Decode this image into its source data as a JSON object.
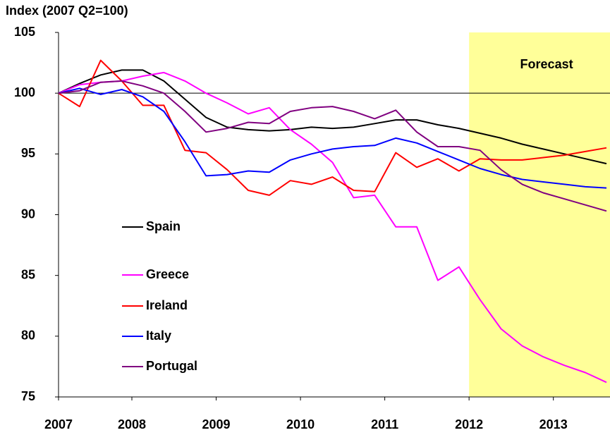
{
  "chart_data": {
    "type": "line",
    "y_axis_label": "Index (2007 Q2=100)",
    "annotation": "Forecast",
    "forecast_start": 2012,
    "forecast_color": "#ffff99",
    "reference_line": 100,
    "xlim": [
      2007.13,
      2013.63
    ],
    "xticks": [
      {
        "value": 2007.13,
        "label": "2007"
      },
      2008,
      2009,
      2010,
      2011,
      2012,
      2013
    ],
    "ylim": [
      75,
      105
    ],
    "yticks": [
      75,
      80,
      85,
      90,
      95,
      100,
      105
    ],
    "x": [
      2007.13,
      2007.38,
      2007.63,
      2007.88,
      2008.13,
      2008.38,
      2008.63,
      2008.88,
      2009.13,
      2009.38,
      2009.63,
      2009.88,
      2010.13,
      2010.38,
      2010.63,
      2010.88,
      2011.13,
      2011.38,
      2011.63,
      2011.88,
      2012.13,
      2012.38,
      2012.63,
      2012.88,
      2013.13,
      2013.38,
      2013.63
    ],
    "series": [
      {
        "name": "Spain",
        "color": "#000000",
        "values": [
          100,
          100.8,
          101.5,
          101.9,
          101.9,
          101,
          99.5,
          98,
          97.2,
          97,
          96.9,
          97,
          97.2,
          97.1,
          97.2,
          97.5,
          97.8,
          97.8,
          97.4,
          97.1,
          96.7,
          96.3,
          95.8,
          95.4,
          95,
          94.6,
          94.2
        ]
      },
      {
        "name": "Greece",
        "color": "#ff00ff",
        "values": [
          100,
          100.7,
          100.9,
          101,
          101.4,
          101.7,
          101,
          100,
          99.2,
          98.3,
          98.8,
          97,
          95.8,
          94.3,
          91.4,
          91.6,
          89,
          89,
          84.6,
          85.7,
          83,
          80.6,
          79.2,
          78.3,
          77.6,
          77,
          76.2
        ]
      },
      {
        "name": "Ireland",
        "color": "#ff0000",
        "values": [
          100,
          98.9,
          102.7,
          101,
          99,
          99,
          95.3,
          95.1,
          93.7,
          92,
          91.6,
          92.8,
          92.5,
          93.1,
          92,
          91.9,
          95.1,
          93.9,
          94.6,
          93.6,
          94.6,
          94.5,
          94.5,
          94.7,
          94.9,
          95.2,
          95.5
        ]
      },
      {
        "name": "Italy",
        "color": "#0000ff",
        "values": [
          100,
          100.4,
          99.9,
          100.3,
          99.7,
          98.5,
          96,
          93.2,
          93.3,
          93.6,
          93.5,
          94.5,
          95,
          95.4,
          95.6,
          95.7,
          96.3,
          95.9,
          95.2,
          94.5,
          93.8,
          93.3,
          92.9,
          92.7,
          92.5,
          92.3,
          92.2
        ]
      },
      {
        "name": "Portugal",
        "color": "#800080",
        "values": [
          100,
          100.2,
          100.9,
          101,
          100.6,
          100,
          98.5,
          96.8,
          97.1,
          97.6,
          97.5,
          98.5,
          98.8,
          98.9,
          98.5,
          97.9,
          98.6,
          96.8,
          95.6,
          95.6,
          95.3,
          93.7,
          92.5,
          91.8,
          91.3,
          90.8,
          90.3
        ]
      }
    ]
  }
}
